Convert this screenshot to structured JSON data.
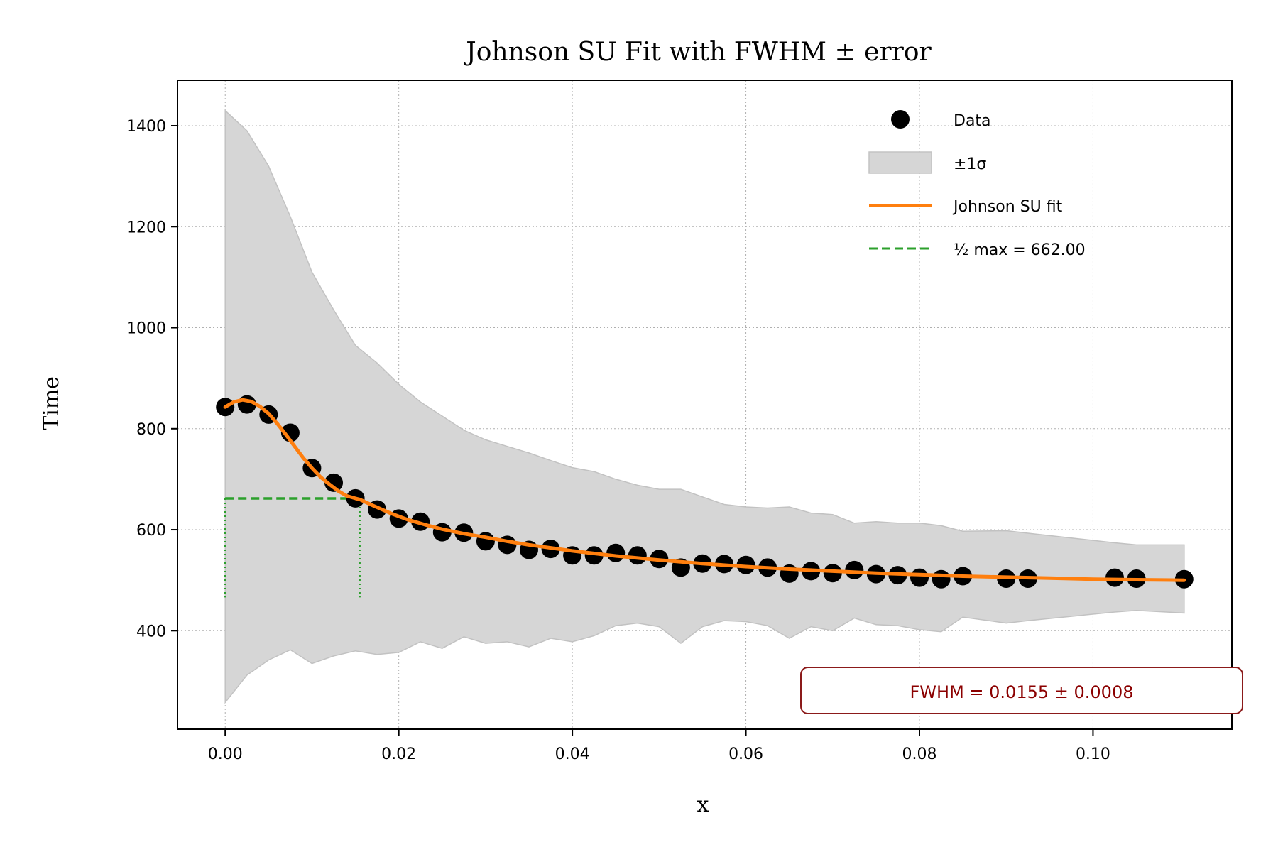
{
  "chart_data": {
    "type": "scatter",
    "title": "Johnson SU Fit with FWHM ± error",
    "xlabel": "x",
    "ylabel": "Time",
    "xlim": [
      -0.0055,
      0.116
    ],
    "ylim": [
      205,
      1490
    ],
    "grid": true,
    "legend_placement": "top-right",
    "x_ticks": [
      0.0,
      0.02,
      0.04,
      0.06,
      0.08,
      0.1
    ],
    "x_tick_labels": [
      "0.00",
      "0.02",
      "0.04",
      "0.06",
      "0.08",
      "0.10"
    ],
    "y_ticks": [
      400,
      600,
      800,
      1000,
      1200,
      1400
    ],
    "y_tick_labels": [
      "400",
      "600",
      "800",
      "1000",
      "1200",
      "1400"
    ],
    "series": [
      {
        "name": "Data",
        "kind": "scatter",
        "color": "#000000",
        "x": [
          0.0,
          0.0025,
          0.005,
          0.0075,
          0.01,
          0.0125,
          0.015,
          0.0175,
          0.02,
          0.0225,
          0.025,
          0.0275,
          0.03,
          0.0325,
          0.035,
          0.0375,
          0.04,
          0.0425,
          0.045,
          0.0475,
          0.05,
          0.0525,
          0.055,
          0.0575,
          0.06,
          0.0625,
          0.065,
          0.0675,
          0.07,
          0.0725,
          0.075,
          0.0775,
          0.08,
          0.0825,
          0.085,
          0.09,
          0.0925,
          0.1025,
          0.105,
          0.1105
        ],
        "y": [
          843,
          848,
          828,
          792,
          722,
          693,
          662,
          640,
          622,
          616,
          595,
          594,
          577,
          570,
          560,
          562,
          549,
          549,
          554,
          549,
          542,
          525,
          533,
          532,
          530,
          525,
          513,
          518,
          514,
          520,
          512,
          510,
          505,
          502,
          508,
          503,
          503,
          505,
          503,
          502
        ]
      },
      {
        "name": "±1σ",
        "kind": "band",
        "color": "#d6d6d6",
        "x": [
          0.0,
          0.0025,
          0.005,
          0.0075,
          0.01,
          0.0125,
          0.015,
          0.0175,
          0.02,
          0.0225,
          0.025,
          0.0275,
          0.03,
          0.0325,
          0.035,
          0.0375,
          0.04,
          0.0425,
          0.045,
          0.0475,
          0.05,
          0.0525,
          0.055,
          0.0575,
          0.06,
          0.0625,
          0.065,
          0.0675,
          0.07,
          0.0725,
          0.075,
          0.0775,
          0.08,
          0.0825,
          0.085,
          0.09,
          0.0925,
          0.1025,
          0.105,
          0.1105
        ],
        "upper": [
          1430,
          1390,
          1320,
          1220,
          1110,
          1035,
          965,
          930,
          888,
          853,
          825,
          797,
          778,
          765,
          752,
          737,
          723,
          715,
          700,
          688,
          680,
          680,
          665,
          650,
          645,
          643,
          645,
          633,
          630,
          613,
          616,
          613,
          613,
          608,
          597,
          598,
          593,
          574,
          570,
          570
        ],
        "lower": [
          258,
          312,
          342,
          362,
          335,
          350,
          360,
          353,
          357,
          378,
          365,
          388,
          375,
          378,
          368,
          385,
          378,
          390,
          410,
          415,
          408,
          375,
          408,
          420,
          418,
          410,
          385,
          408,
          400,
          425,
          412,
          410,
          402,
          398,
          427,
          415,
          420,
          437,
          440,
          435
        ]
      },
      {
        "name": "Johnson SU fit",
        "kind": "line",
        "color": "#ff7f0e",
        "x": [
          0.0,
          0.001,
          0.002,
          0.003,
          0.004,
          0.005,
          0.006,
          0.007,
          0.008,
          0.009,
          0.01,
          0.011,
          0.012,
          0.013,
          0.014,
          0.015,
          0.0155,
          0.017,
          0.019,
          0.021,
          0.023,
          0.025,
          0.0275,
          0.03,
          0.0325,
          0.035,
          0.0375,
          0.04,
          0.045,
          0.05,
          0.055,
          0.06,
          0.065,
          0.07,
          0.075,
          0.08,
          0.085,
          0.09,
          0.095,
          0.1,
          0.105,
          0.1105
        ],
        "y": [
          843,
          853,
          857,
          854,
          844,
          830,
          810,
          788,
          765,
          742,
          722,
          704,
          690,
          677,
          667,
          662,
          660,
          648,
          633,
          620,
          610,
          601,
          592,
          585,
          577,
          570,
          564,
          558,
          548,
          540,
          533,
          527,
          522,
          518,
          514,
          511,
          508,
          506,
          504,
          502,
          501,
          500
        ]
      },
      {
        "name": "½ max = 662.00",
        "kind": "half-max-marker",
        "color": "#2ca02c",
        "half_max": 662.0,
        "x_start": 0.0,
        "x_end": 0.0155,
        "y_floor": 466
      }
    ],
    "annotation": {
      "text": "FWHM = 0.0155 ± 0.0008",
      "placement": "bottom-right",
      "color": "#8b0000"
    }
  }
}
